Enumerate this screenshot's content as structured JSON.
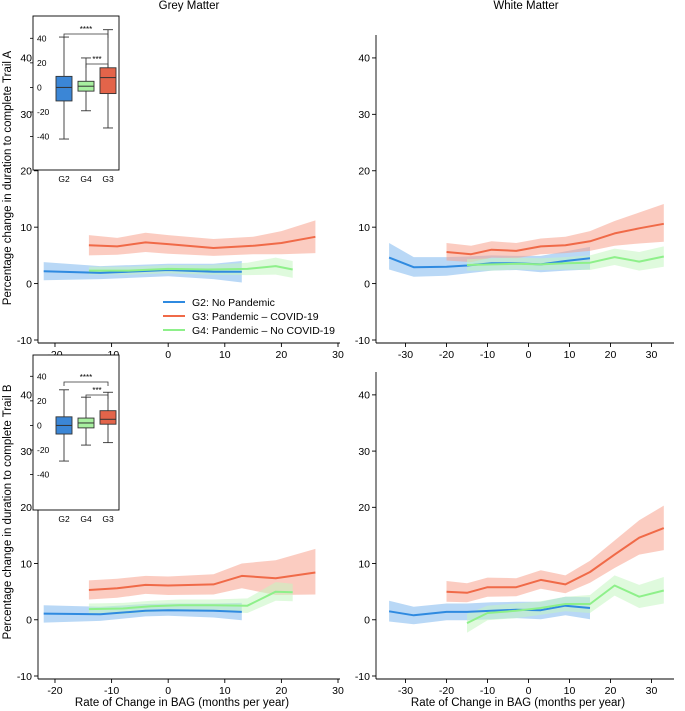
{
  "titles": {
    "grey": "Grey Matter",
    "white": "White Matter"
  },
  "ylabels": {
    "top": "Percentage change in duration to complete Trail A",
    "bottom": "Percentage change in duration to complete Trail B"
  },
  "xlabel": "Rate of Change in BAG (months per year)",
  "legend": [
    {
      "key": "G2",
      "label": "G2: No Pandemic",
      "color": "#2f8ae0"
    },
    {
      "key": "G3",
      "label": "G3: Pandemic – COVID-19",
      "color": "#f06a48"
    },
    {
      "key": "G4",
      "label": "G4: Pandemic – No COVID-19",
      "color": "#8ef08a"
    }
  ],
  "colors": {
    "G2": "#2f8ae0",
    "G3": "#f06a48",
    "G4": "#8ef08a",
    "G2_fill": "#7fb8ee",
    "G3_fill": "#f7a38e",
    "G4_fill": "#c4f6c1",
    "G2_box": "#3b86d6",
    "G3_box": "#e3644a",
    "G4_box": "#a8f0a0"
  },
  "chart_data": [
    {
      "id": "top-left",
      "type": "line",
      "title": "Grey Matter",
      "ylabel": "Percentage change in duration to complete Trail A",
      "xlabel": "",
      "xlim": [
        -23,
        30
      ],
      "ylim": [
        -10,
        43
      ],
      "xticks": [
        -20,
        -10,
        0,
        10,
        20,
        30
      ],
      "yticks": [
        -10,
        0,
        10,
        20,
        30,
        40
      ],
      "series": [
        {
          "key": "G2",
          "x": [
            -22,
            -12,
            0,
            8,
            13
          ],
          "y": [
            2.2,
            1.9,
            2.4,
            2.1,
            2.1
          ],
          "lo": [
            0.6,
            0.8,
            1.3,
            0.8,
            0.2
          ],
          "hi": [
            3.8,
            3.1,
            3.5,
            3.5,
            4.0
          ]
        },
        {
          "key": "G3",
          "x": [
            -14,
            -9,
            -4,
            0,
            8,
            15,
            20,
            26
          ],
          "y": [
            6.8,
            6.6,
            7.3,
            7.0,
            6.3,
            6.7,
            7.2,
            8.3
          ],
          "lo": [
            5.0,
            5.1,
            5.6,
            5.3,
            4.9,
            5.2,
            5.2,
            5.4
          ],
          "hi": [
            8.6,
            8.1,
            9.0,
            8.6,
            7.9,
            8.3,
            9.3,
            11.2
          ]
        },
        {
          "key": "G4",
          "x": [
            -14,
            -7,
            0,
            7,
            14,
            19,
            22
          ],
          "y": [
            2.3,
            2.3,
            2.6,
            2.5,
            2.6,
            3.1,
            2.5
          ],
          "lo": [
            1.6,
            1.6,
            1.8,
            1.6,
            1.5,
            1.6,
            1.0
          ],
          "hi": [
            3.0,
            3.0,
            3.3,
            3.3,
            3.7,
            4.6,
            4.0
          ]
        }
      ],
      "inset": {
        "categories": [
          "G2",
          "G4",
          "G3"
        ],
        "ylim": [
          -55,
          50
        ],
        "yticks": [
          -40,
          -20,
          0,
          20,
          40
        ],
        "ytick_labels": [
          "-40",
          "-20",
          "0",
          "20",
          "40"
        ],
        "boxes": [
          {
            "key": "G2",
            "whisker_low": -42,
            "q1": -11,
            "median": 0,
            "q3": 9,
            "whisker_high": 41
          },
          {
            "key": "G4",
            "whisker_low": -19,
            "q1": -3,
            "median": 1,
            "q3": 5,
            "whisker_high": 24
          },
          {
            "key": "G3",
            "whisker_low": -33,
            "q1": -5,
            "median": 8,
            "q3": 16,
            "whisker_high": 47
          }
        ],
        "significance": [
          {
            "from": "G2",
            "to": "G3",
            "label": "****"
          },
          {
            "from": "G4",
            "to": "G3",
            "label": "***"
          }
        ]
      }
    },
    {
      "id": "top-right",
      "type": "line",
      "title": "White Matter",
      "ylabel": "",
      "xlabel": "",
      "xlim": [
        -35,
        35
      ],
      "ylim": [
        -10,
        43
      ],
      "xticks": [
        -30,
        -20,
        -10,
        0,
        10,
        20,
        30
      ],
      "yticks": [
        -10,
        0,
        10,
        20,
        30,
        40
      ],
      "series": [
        {
          "key": "G2",
          "x": [
            -34,
            -28,
            -20,
            -15,
            -9,
            -3,
            3,
            9,
            15
          ],
          "y": [
            4.6,
            2.9,
            3.0,
            3.2,
            3.6,
            3.6,
            3.4,
            4.0,
            4.5
          ],
          "lo": [
            2.5,
            1.2,
            1.4,
            1.8,
            2.3,
            2.4,
            2.0,
            2.3,
            2.5
          ],
          "hi": [
            7.2,
            4.7,
            4.7,
            4.8,
            5.0,
            4.9,
            4.9,
            5.7,
            6.5
          ]
        },
        {
          "key": "G3",
          "x": [
            -20,
            -14,
            -9,
            -3,
            3,
            9,
            15,
            21,
            27,
            33
          ],
          "y": [
            5.6,
            5.2,
            6.0,
            5.8,
            6.6,
            6.8,
            7.5,
            8.9,
            9.8,
            10.6
          ],
          "lo": [
            4.1,
            3.8,
            4.6,
            4.5,
            5.2,
            5.4,
            5.8,
            6.7,
            7.1,
            7.4
          ],
          "hi": [
            7.2,
            6.7,
            7.5,
            7.2,
            8.0,
            8.3,
            9.3,
            11.1,
            12.6,
            14.1
          ]
        },
        {
          "key": "G4",
          "x": [
            -15,
            -9,
            -3,
            3,
            9,
            15,
            21,
            27,
            33
          ],
          "y": [
            3.3,
            3.4,
            3.5,
            3.4,
            3.6,
            3.7,
            4.7,
            3.9,
            4.8
          ],
          "lo": [
            2.3,
            2.3,
            2.5,
            2.4,
            2.5,
            2.4,
            3.3,
            2.3,
            3.0
          ],
          "hi": [
            4.3,
            4.5,
            4.6,
            4.5,
            4.7,
            5.0,
            6.2,
            5.6,
            6.6
          ]
        }
      ]
    },
    {
      "id": "bottom-left",
      "type": "line",
      "title": "",
      "ylabel": "Percentage change in duration to complete Trail B",
      "xlabel": "Rate of Change in BAG (months per year)",
      "xlim": [
        -23,
        30
      ],
      "ylim": [
        -10,
        43
      ],
      "xticks": [
        -20,
        -10,
        0,
        10,
        20,
        30
      ],
      "yticks": [
        -10,
        0,
        10,
        20,
        30,
        40
      ],
      "series": [
        {
          "key": "G2",
          "x": [
            -22,
            -12,
            -4,
            0,
            8,
            13
          ],
          "y": [
            1.1,
            1.0,
            1.6,
            1.7,
            1.6,
            1.4
          ],
          "lo": [
            -0.5,
            -0.2,
            0.6,
            0.7,
            0.4,
            -0.1
          ],
          "hi": [
            2.6,
            2.3,
            2.8,
            2.9,
            2.9,
            3.0
          ]
        },
        {
          "key": "G3",
          "x": [
            -14,
            -9,
            -4,
            0,
            8,
            13,
            19,
            26
          ],
          "y": [
            5.3,
            5.6,
            6.2,
            6.1,
            6.3,
            7.8,
            7.4,
            8.4
          ],
          "lo": [
            3.6,
            3.9,
            4.6,
            4.4,
            4.5,
            5.6,
            4.4,
            4.5
          ],
          "hi": [
            7.0,
            7.3,
            7.8,
            7.7,
            8.1,
            10.0,
            10.6,
            12.6
          ]
        },
        {
          "key": "G4",
          "x": [
            -14,
            -8,
            -3,
            2,
            8,
            14,
            19,
            22
          ],
          "y": [
            1.9,
            2.0,
            2.4,
            2.6,
            2.6,
            2.5,
            5.0,
            4.9
          ],
          "lo": [
            0.9,
            1.0,
            1.4,
            1.6,
            1.5,
            1.2,
            3.4,
            3.3
          ],
          "hi": [
            2.9,
            3.0,
            3.4,
            3.6,
            3.6,
            3.8,
            6.7,
            6.4
          ]
        }
      ],
      "inset": {
        "categories": [
          "G2",
          "G4",
          "G3"
        ],
        "ylim": [
          -55,
          50
        ],
        "yticks": [
          -40,
          -20,
          0,
          20,
          40
        ],
        "ytick_labels": [
          "-40",
          "-20",
          "0",
          "20",
          "40"
        ],
        "boxes": [
          {
            "key": "G2",
            "whisker_low": -29,
            "q1": -7,
            "median": 0,
            "q3": 7,
            "whisker_high": 29
          },
          {
            "key": "G4",
            "whisker_low": -16,
            "q1": -2,
            "median": 2,
            "q3": 6,
            "whisker_high": 23
          },
          {
            "key": "G3",
            "whisker_low": -14,
            "q1": 1,
            "median": 5,
            "q3": 12,
            "whisker_high": 27
          }
        ],
        "significance": [
          {
            "from": "G2",
            "to": "G3",
            "label": "****"
          },
          {
            "from": "G4",
            "to": "G3",
            "label": "***"
          }
        ]
      }
    },
    {
      "id": "bottom-right",
      "type": "line",
      "title": "",
      "ylabel": "",
      "xlabel": "Rate of Change in BAG (months per year)",
      "xlim": [
        -35,
        35
      ],
      "ylim": [
        -10,
        43
      ],
      "xticks": [
        -30,
        -20,
        -10,
        0,
        10,
        20,
        30
      ],
      "yticks": [
        -10,
        0,
        10,
        20,
        30,
        40
      ],
      "series": [
        {
          "key": "G2",
          "x": [
            -34,
            -28,
            -20,
            -15,
            -9,
            -3,
            3,
            9,
            15
          ],
          "y": [
            1.5,
            0.8,
            1.4,
            1.4,
            1.6,
            1.8,
            1.7,
            2.5,
            2.1
          ],
          "lo": [
            -0.3,
            -0.8,
            -0.1,
            -0.1,
            0.1,
            0.3,
            0.1,
            0.8,
            0.1
          ],
          "hi": [
            3.4,
            2.3,
            2.9,
            2.9,
            3.1,
            3.2,
            3.2,
            4.1,
            4.0
          ]
        },
        {
          "key": "G3",
          "x": [
            -20,
            -15,
            -10,
            -3,
            3,
            9,
            15,
            21,
            27,
            33
          ],
          "y": [
            5.0,
            4.8,
            5.8,
            5.8,
            7.1,
            6.3,
            8.5,
            11.6,
            14.6,
            16.3
          ],
          "lo": [
            3.2,
            3.1,
            4.1,
            4.2,
            5.5,
            4.7,
            6.6,
            9.2,
            11.6,
            12.4
          ],
          "hi": [
            6.9,
            6.5,
            7.5,
            7.4,
            8.8,
            7.9,
            10.5,
            14.1,
            17.7,
            20.3
          ]
        },
        {
          "key": "G4",
          "x": [
            -15,
            -10,
            -3,
            3,
            9,
            15,
            21,
            27,
            33
          ],
          "y": [
            -0.6,
            1.2,
            1.6,
            2.1,
            2.8,
            2.8,
            6.1,
            4.1,
            5.2
          ],
          "lo": [
            -2.3,
            -0.1,
            0.3,
            0.9,
            1.5,
            1.2,
            4.3,
            2.1,
            2.9
          ],
          "hi": [
            1.1,
            2.5,
            2.9,
            3.3,
            4.1,
            4.4,
            7.9,
            6.2,
            7.6
          ]
        }
      ]
    }
  ]
}
